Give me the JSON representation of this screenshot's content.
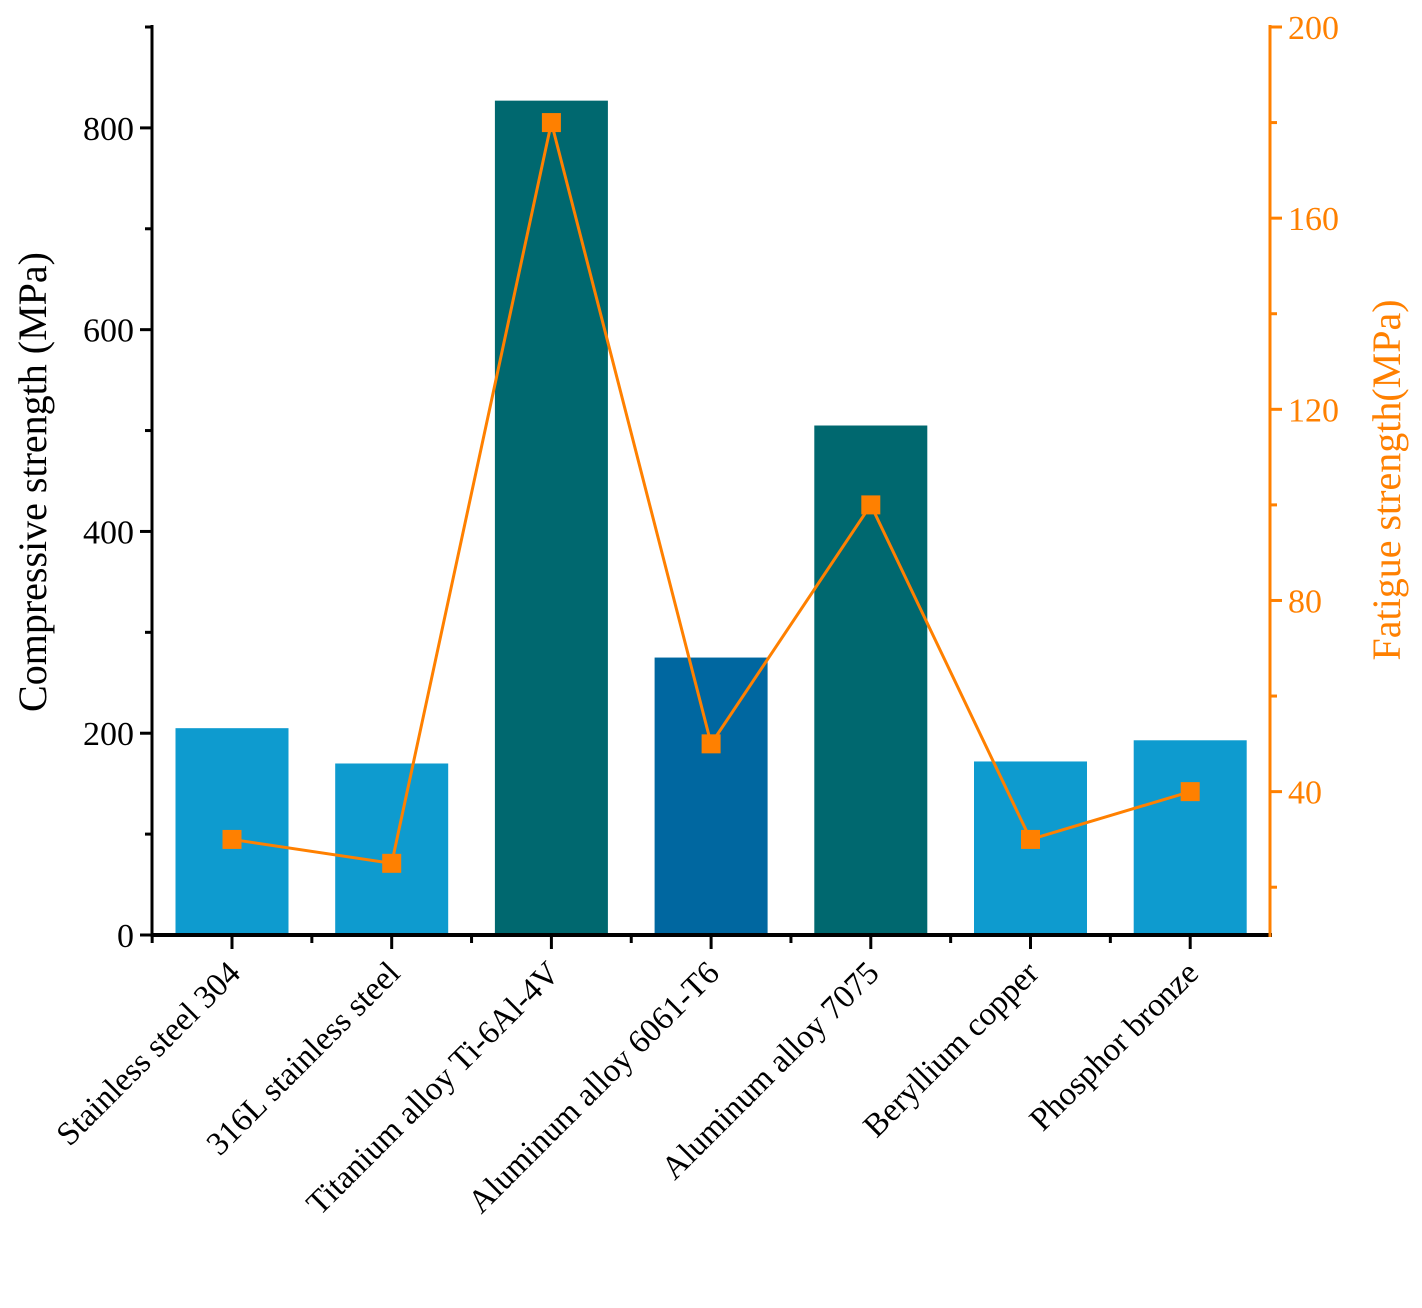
{
  "colors": {
    "left_axis": "#000000",
    "right_axis": "#FF8000",
    "line": "#FF8000",
    "marker": "#FF8000"
  },
  "chart_data": {
    "type": "bar",
    "categories": [
      "Stainless steel 304",
      "316L stainless steel",
      "Titanium alloy Ti-6Al-4V",
      "Aluminum alloy 6061-T6",
      "Aluminum alloy 7075",
      "Beryllium copper",
      "Phosphor bronze"
    ],
    "series": [
      {
        "name": "Compressive strength",
        "type": "bar",
        "axis": "left",
        "values": [
          205,
          170,
          827,
          275,
          505,
          172,
          193
        ],
        "colors": [
          "#0E9BCF",
          "#0E9BCF",
          "#00686F",
          "#0067A0",
          "#00686F",
          "#0E9BCF",
          "#0E9BCF"
        ]
      },
      {
        "name": "Fatigue strength",
        "type": "line",
        "axis": "right",
        "values": [
          30,
          25,
          180,
          50,
          100,
          30,
          40
        ],
        "color": "#FF8000"
      }
    ],
    "left_axis": {
      "label": "Compressive strength (MPa)",
      "ylim": [
        0,
        900
      ],
      "ticks": [
        0,
        200,
        400,
        600,
        800
      ],
      "tick_labels": [
        "0",
        "200",
        "400",
        "600",
        "800"
      ],
      "minor_ticks": [
        100,
        300,
        500,
        700,
        900
      ]
    },
    "right_axis": {
      "label": "Fatigue strength(MPa)",
      "ylim": [
        10,
        200
      ],
      "ticks": [
        40,
        80,
        120,
        160,
        200
      ],
      "tick_labels": [
        "40",
        "80",
        "120",
        "160",
        "200"
      ],
      "minor_ticks": [
        20,
        60,
        100,
        140,
        180
      ]
    },
    "xlabel": "",
    "grid": false
  }
}
